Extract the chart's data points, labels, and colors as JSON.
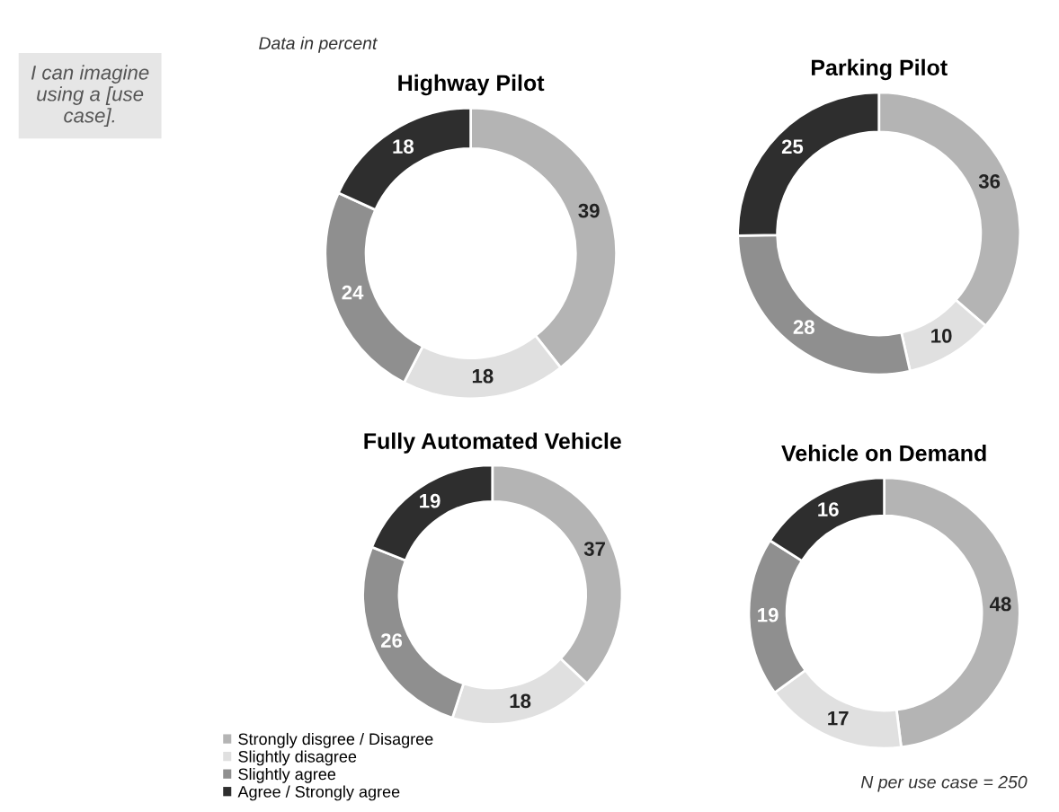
{
  "chart_data": [
    {
      "type": "donut",
      "title": "Highway Pilot",
      "categories": [
        "Strongly disgree / Disagree",
        "Slightly disagree",
        "Slightly agree",
        "Agree / Strongly agree"
      ],
      "values": [
        39,
        18,
        24,
        18
      ],
      "colors": [
        "#b4b4b4",
        "#e0e0e0",
        "#8f8f8f",
        "#2e2e2e"
      ],
      "data_labels": true,
      "legend": "bottom left",
      "annotations": [
        "I can imagine using a [use case].",
        "Data in percent"
      ]
    },
    {
      "type": "donut",
      "title": "Parking Pilot",
      "categories": [
        null,
        null,
        null,
        null
      ],
      "values": [
        36,
        10,
        28,
        25
      ],
      "colors": [
        "#b4b4b4",
        "#e0e0e0",
        "#8f8f8f",
        "#2e2e2e"
      ],
      "data_labels": true
    },
    {
      "type": "donut",
      "title": "Fully Automated Vehicle",
      "categories": [
        null,
        null,
        null,
        null
      ],
      "values": [
        37,
        18,
        26,
        19
      ],
      "colors": [
        "#b4b4b4",
        "#e0e0e0",
        "#8f8f8f",
        "#2e2e2e"
      ],
      "data_labels": true
    },
    {
      "type": "donut",
      "title": "Vehicle on Demand",
      "categories": [
        null,
        null,
        null,
        null
      ],
      "values": [
        48,
        17,
        19,
        16
      ],
      "colors": [
        "#b4b4b4",
        "#e0e0e0",
        "#8f8f8f",
        "#2e2e2e"
      ],
      "data_labels": true,
      "annotations": [
        "N per use case = 250"
      ]
    }
  ]
}
